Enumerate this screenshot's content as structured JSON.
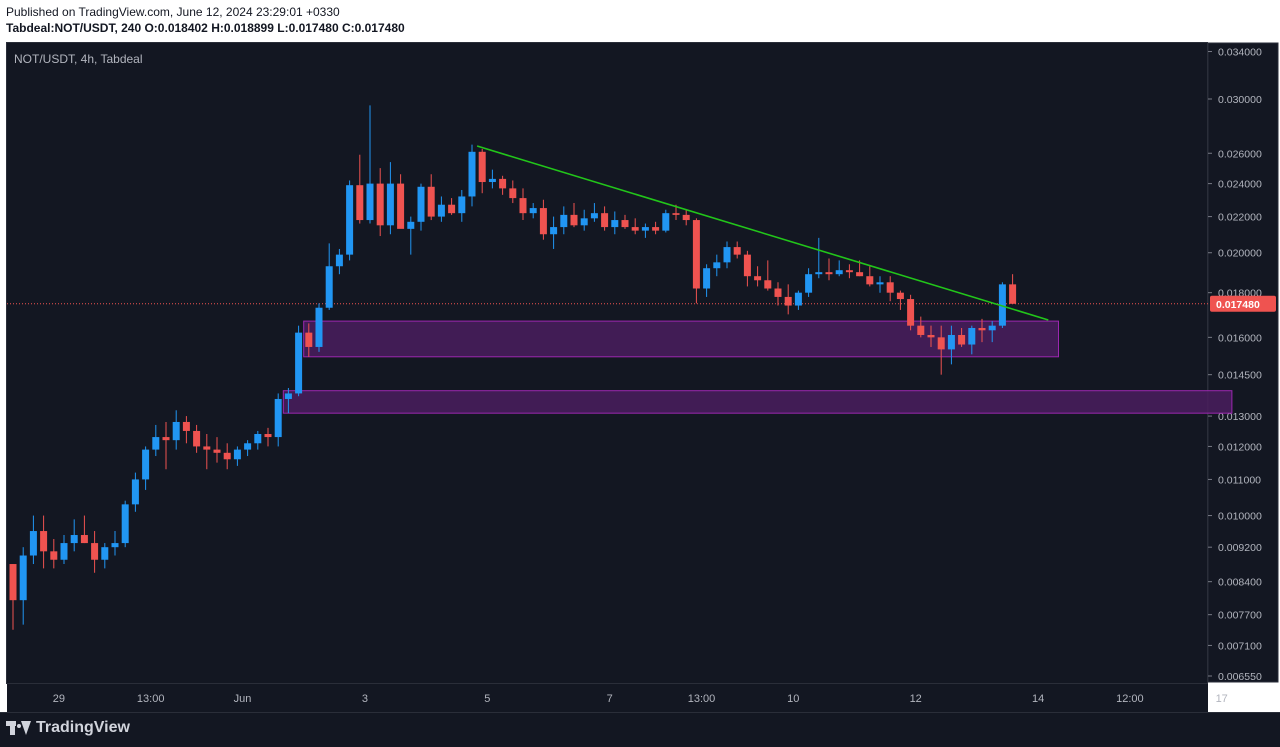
{
  "header": {
    "published": "Published on TradingView.com, June 12, 2024 23:29:01 +0330",
    "ohlc": "Tabdeal:NOT/USDT, 240  O:0.018402  H:0.018899  L:0.017480  C:0.017480"
  },
  "symbol_label": "NOT/USDT, 4h, Tabdeal",
  "footer": {
    "logo_text": "TradingView"
  },
  "colors": {
    "up": "#2196f3",
    "down": "#ef5350",
    "trendline": "#22c51a",
    "zone_fill": "#4a1d5e",
    "zone_border": "#9c27b0",
    "price_label_bg": "#ef5350",
    "price_line": "#ef5350"
  },
  "chart_data": {
    "type": "candlestick",
    "title": "NOT/USDT, 4h, Tabdeal",
    "y_scale": "log",
    "ylim": [
      0.00655,
      0.0345
    ],
    "y_ticks": [
      "0.034000",
      "0.030000",
      "0.026000",
      "0.024000",
      "0.022000",
      "0.020000",
      "0.018000",
      "0.016000",
      "0.014500",
      "0.013000",
      "0.012000",
      "0.011000",
      "0.010000",
      "0.009200",
      "0.008400",
      "0.007700",
      "0.007100",
      "0.006550"
    ],
    "x_ticks": [
      {
        "label": "29",
        "index": 4.5
      },
      {
        "label": "13:00",
        "index": 13.5
      },
      {
        "label": "Jun",
        "index": 22.5
      },
      {
        "label": "3",
        "index": 34.5
      },
      {
        "label": "5",
        "index": 46.5
      },
      {
        "label": "7",
        "index": 58.5
      },
      {
        "label": "13:00",
        "index": 67.5
      },
      {
        "label": "10",
        "index": 76.5
      },
      {
        "label": "12",
        "index": 88.5
      },
      {
        "label": "14",
        "index": 100.5
      },
      {
        "label": "12:00",
        "index": 109.5
      },
      {
        "label": "17",
        "index": 118.5
      }
    ],
    "last_price": "0.017480",
    "last_price_value": 0.01748,
    "candles": [
      [
        0.0088,
        0.0088,
        0.0074,
        0.008
      ],
      [
        0.008,
        0.0092,
        0.0075,
        0.009
      ],
      [
        0.009,
        0.01,
        0.0088,
        0.0096
      ],
      [
        0.0096,
        0.01,
        0.0087,
        0.0091
      ],
      [
        0.0091,
        0.0094,
        0.0087,
        0.0089
      ],
      [
        0.0089,
        0.0095,
        0.0088,
        0.0093
      ],
      [
        0.0093,
        0.0099,
        0.0091,
        0.0095
      ],
      [
        0.0095,
        0.01,
        0.0093,
        0.0093
      ],
      [
        0.0093,
        0.0096,
        0.0086,
        0.0089
      ],
      [
        0.0089,
        0.0093,
        0.0087,
        0.0092
      ],
      [
        0.0092,
        0.0096,
        0.009,
        0.0093
      ],
      [
        0.0093,
        0.0104,
        0.0092,
        0.0103
      ],
      [
        0.0103,
        0.0112,
        0.0101,
        0.011
      ],
      [
        0.011,
        0.012,
        0.0107,
        0.0119
      ],
      [
        0.0119,
        0.0127,
        0.0117,
        0.0123
      ],
      [
        0.0123,
        0.0128,
        0.0113,
        0.0122
      ],
      [
        0.0122,
        0.0132,
        0.0119,
        0.0128
      ],
      [
        0.0128,
        0.013,
        0.0121,
        0.0125
      ],
      [
        0.0125,
        0.0127,
        0.0118,
        0.012
      ],
      [
        0.012,
        0.0124,
        0.0113,
        0.0119
      ],
      [
        0.0119,
        0.0123,
        0.0115,
        0.0118
      ],
      [
        0.0118,
        0.0121,
        0.0113,
        0.0116
      ],
      [
        0.0116,
        0.012,
        0.0114,
        0.0119
      ],
      [
        0.0119,
        0.0122,
        0.0117,
        0.0121
      ],
      [
        0.0121,
        0.0125,
        0.0119,
        0.0124
      ],
      [
        0.0124,
        0.0126,
        0.012,
        0.0123
      ],
      [
        0.0123,
        0.0138,
        0.012,
        0.0136
      ],
      [
        0.0136,
        0.014,
        0.0131,
        0.0138
      ],
      [
        0.0138,
        0.0165,
        0.0137,
        0.0162
      ],
      [
        0.0162,
        0.0166,
        0.0152,
        0.0156
      ],
      [
        0.0156,
        0.0175,
        0.0154,
        0.0173
      ],
      [
        0.0173,
        0.0205,
        0.0172,
        0.0193
      ],
      [
        0.0193,
        0.0202,
        0.0189,
        0.0199
      ],
      [
        0.0199,
        0.0242,
        0.0196,
        0.0239
      ],
      [
        0.0239,
        0.0259,
        0.0216,
        0.0218
      ],
      [
        0.0218,
        0.0295,
        0.0216,
        0.024
      ],
      [
        0.024,
        0.025,
        0.0209,
        0.0215
      ],
      [
        0.0215,
        0.0254,
        0.021,
        0.024
      ],
      [
        0.024,
        0.0246,
        0.0214,
        0.0213
      ],
      [
        0.0213,
        0.022,
        0.0199,
        0.0217
      ],
      [
        0.0217,
        0.024,
        0.0212,
        0.0238
      ],
      [
        0.0238,
        0.0246,
        0.0218,
        0.022
      ],
      [
        0.022,
        0.0232,
        0.0217,
        0.0227
      ],
      [
        0.0227,
        0.0231,
        0.0221,
        0.0222
      ],
      [
        0.0222,
        0.0236,
        0.0217,
        0.0232
      ],
      [
        0.0232,
        0.0266,
        0.0226,
        0.0261
      ],
      [
        0.0261,
        0.0263,
        0.0234,
        0.0241
      ],
      [
        0.0241,
        0.0249,
        0.0237,
        0.0243
      ],
      [
        0.0243,
        0.0245,
        0.0233,
        0.0237
      ],
      [
        0.0237,
        0.0242,
        0.0228,
        0.0231
      ],
      [
        0.0231,
        0.0237,
        0.0218,
        0.0222
      ],
      [
        0.0222,
        0.0228,
        0.0219,
        0.0225
      ],
      [
        0.0225,
        0.023,
        0.0207,
        0.021
      ],
      [
        0.021,
        0.022,
        0.0202,
        0.0214
      ],
      [
        0.0214,
        0.0226,
        0.021,
        0.0221
      ],
      [
        0.0221,
        0.0228,
        0.0214,
        0.0215
      ],
      [
        0.0215,
        0.0224,
        0.0212,
        0.0219
      ],
      [
        0.0219,
        0.0228,
        0.0217,
        0.0222
      ],
      [
        0.0222,
        0.0226,
        0.0212,
        0.0214
      ],
      [
        0.0214,
        0.0223,
        0.021,
        0.0218
      ],
      [
        0.0218,
        0.0221,
        0.0213,
        0.0214
      ],
      [
        0.0214,
        0.0219,
        0.021,
        0.0212
      ],
      [
        0.0212,
        0.0216,
        0.0208,
        0.0214
      ],
      [
        0.0214,
        0.0217,
        0.021,
        0.0212
      ],
      [
        0.0212,
        0.0224,
        0.0211,
        0.0222
      ],
      [
        0.0222,
        0.0227,
        0.0218,
        0.0221
      ],
      [
        0.0221,
        0.0224,
        0.0215,
        0.0218
      ],
      [
        0.0218,
        0.0219,
        0.0175,
        0.0182
      ],
      [
        0.0182,
        0.0194,
        0.0178,
        0.0192
      ],
      [
        0.0192,
        0.0199,
        0.0188,
        0.0195
      ],
      [
        0.0195,
        0.0206,
        0.0192,
        0.0203
      ],
      [
        0.0203,
        0.0206,
        0.0197,
        0.0199
      ],
      [
        0.0199,
        0.0201,
        0.0183,
        0.0188
      ],
      [
        0.0188,
        0.0193,
        0.0183,
        0.0186
      ],
      [
        0.0186,
        0.0196,
        0.0181,
        0.0182
      ],
      [
        0.0182,
        0.0185,
        0.0174,
        0.0178
      ],
      [
        0.0178,
        0.0184,
        0.017,
        0.0174
      ],
      [
        0.0174,
        0.0181,
        0.0172,
        0.018
      ],
      [
        0.018,
        0.0192,
        0.0178,
        0.0189
      ],
      [
        0.0189,
        0.0208,
        0.0187,
        0.019
      ],
      [
        0.019,
        0.0197,
        0.0186,
        0.0189
      ],
      [
        0.0189,
        0.0196,
        0.0188,
        0.0191
      ],
      [
        0.0191,
        0.0194,
        0.0187,
        0.019
      ],
      [
        0.019,
        0.0196,
        0.0188,
        0.0188
      ],
      [
        0.0188,
        0.0193,
        0.0183,
        0.0184
      ],
      [
        0.0184,
        0.0188,
        0.018,
        0.0185
      ],
      [
        0.0185,
        0.0188,
        0.0176,
        0.018
      ],
      [
        0.018,
        0.0181,
        0.0172,
        0.0177
      ],
      [
        0.0177,
        0.0179,
        0.0163,
        0.0165
      ],
      [
        0.0165,
        0.0169,
        0.016,
        0.0161
      ],
      [
        0.0161,
        0.0165,
        0.0156,
        0.016
      ],
      [
        0.016,
        0.0165,
        0.0145,
        0.0155
      ],
      [
        0.0155,
        0.0165,
        0.0149,
        0.0161
      ],
      [
        0.0161,
        0.0164,
        0.0156,
        0.0157
      ],
      [
        0.0157,
        0.0165,
        0.0153,
        0.0164
      ],
      [
        0.0164,
        0.0168,
        0.0158,
        0.0163
      ],
      [
        0.0163,
        0.0167,
        0.0158,
        0.0165
      ],
      [
        0.0165,
        0.0185,
        0.0164,
        0.0184
      ],
      [
        0.0184,
        0.0189,
        0.01748,
        0.01748
      ]
    ],
    "trendline": {
      "from": {
        "index": 45.5,
        "price": 0.0265
      },
      "to": {
        "index": 101.5,
        "price": 0.01675
      }
    },
    "zones": [
      {
        "from_index": 28.5,
        "to_index": 102.5,
        "top": 0.0167,
        "bottom": 0.0152
      },
      {
        "from_index": 26.5,
        "to_index": 119.5,
        "top": 0.0139,
        "bottom": 0.0131
      }
    ]
  }
}
